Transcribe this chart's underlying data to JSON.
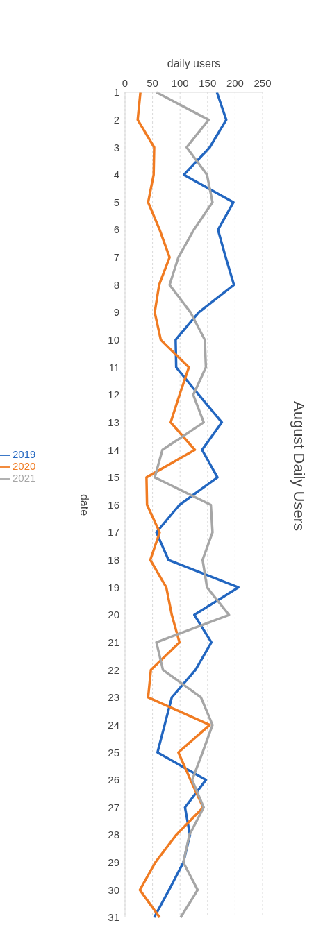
{
  "chart_data": {
    "type": "line",
    "orientation": "horizontal",
    "title": "August Daily Users",
    "xlabel": "daily users",
    "ylabel": "date",
    "categories": [
      "1",
      "2",
      "3",
      "4",
      "5",
      "6",
      "7",
      "8",
      "9",
      "10",
      "11",
      "12",
      "13",
      "14",
      "15",
      "16",
      "17",
      "18",
      "19",
      "20",
      "21",
      "22",
      "23",
      "24",
      "25",
      "26",
      "27",
      "28",
      "29",
      "30",
      "31"
    ],
    "series": [
      {
        "name": "2019",
        "color": "#2266c0",
        "values": [
          167,
          184,
          154,
          107,
          197,
          169,
          183,
          198,
          134,
          92,
          93,
          134,
          176,
          140,
          168,
          99,
          57,
          79,
          206,
          126,
          157,
          128,
          85,
          72,
          59,
          147,
          109,
          118,
          106,
          80,
          53
        ]
      },
      {
        "name": "2020",
        "color": "#f07b22",
        "values": [
          28,
          23,
          53,
          52,
          42,
          63,
          81,
          62,
          54,
          65,
          116,
          99,
          83,
          127,
          39,
          40,
          63,
          46,
          75,
          85,
          99,
          47,
          42,
          154,
          97,
          119,
          142,
          93,
          55,
          27,
          63
        ]
      },
      {
        "name": "2021",
        "color": "#a6a6a6",
        "values": [
          57,
          152,
          112,
          149,
          159,
          125,
          97,
          81,
          119,
          145,
          147,
          124,
          143,
          68,
          54,
          156,
          159,
          141,
          149,
          189,
          57,
          69,
          138,
          159,
          141,
          122,
          143,
          117,
          106,
          132,
          101
        ]
      }
    ],
    "xlim": [
      0,
      250
    ],
    "xticks": [
      0,
      50,
      100,
      150,
      200,
      250
    ],
    "grid": "x",
    "legend": "left",
    "marker": "none",
    "line_style": "solid"
  }
}
